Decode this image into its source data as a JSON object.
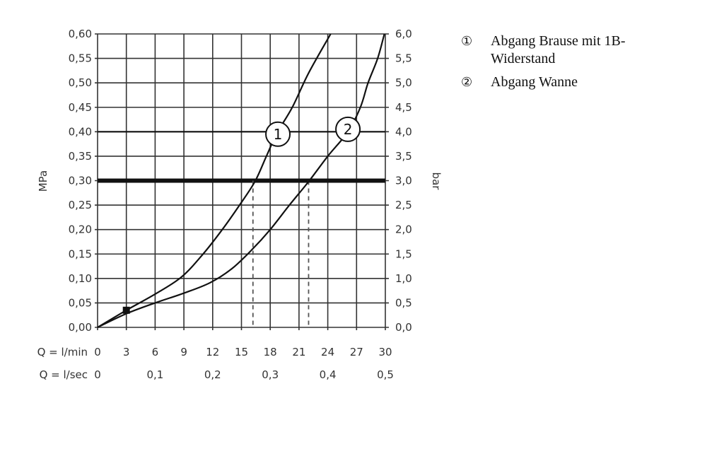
{
  "chart_data": {
    "type": "line",
    "title": "",
    "ylabel_left": "MPa",
    "ylabel_right": "bar",
    "x_row_labels": [
      "Q = l/min",
      "Q = l/sec"
    ],
    "xlim": [
      0,
      30
    ],
    "ylim": [
      0,
      0.6
    ],
    "grid": true,
    "x_ticks_lmin": [
      "0",
      "3",
      "6",
      "9",
      "12",
      "15",
      "18",
      "21",
      "24",
      "27",
      "30"
    ],
    "x_ticks_lsec": [
      {
        "value": 0,
        "label": "0"
      },
      {
        "value": 6,
        "label": "0,1"
      },
      {
        "value": 12,
        "label": "0,2"
      },
      {
        "value": 18,
        "label": "0,3"
      },
      {
        "value": 24,
        "label": "0,4"
      },
      {
        "value": 30,
        "label": "0,5"
      }
    ],
    "y_ticks_left": [
      "0,00",
      "0,05",
      "0,10",
      "0,15",
      "0,20",
      "0,25",
      "0,30",
      "0,35",
      "0,40",
      "0,45",
      "0,50",
      "0,55",
      "0,60"
    ],
    "y_ticks_right": [
      "0,0",
      "0,5",
      "1,0",
      "1,5",
      "2,0",
      "2,5",
      "3,0",
      "3,5",
      "4,0",
      "4,5",
      "5,0",
      "5,5",
      "6,0"
    ],
    "reference_lines": [
      {
        "y": 0.3,
        "style": "thick"
      },
      {
        "y": 0.4,
        "style": "medium"
      }
    ],
    "drop_lines": [
      {
        "x": 16.2,
        "y": 0.3
      },
      {
        "x": 22.0,
        "y": 0.3
      }
    ],
    "marker": {
      "x": 3,
      "y": 0.035
    },
    "series": [
      {
        "name": "1",
        "points": [
          [
            0,
            0
          ],
          [
            3,
            0.035
          ],
          [
            6,
            0.068
          ],
          [
            8.75,
            0.103
          ],
          [
            11,
            0.15
          ],
          [
            13,
            0.2
          ],
          [
            14.8,
            0.25
          ],
          [
            16.4,
            0.298
          ],
          [
            17.6,
            0.35
          ],
          [
            18.7,
            0.397
          ],
          [
            20.3,
            0.45
          ],
          [
            22,
            0.52
          ],
          [
            24.3,
            0.6
          ]
        ],
        "label_at": [
          18.8,
          0.395
        ]
      },
      {
        "name": "2",
        "points": [
          [
            0,
            0
          ],
          [
            3,
            0.028
          ],
          [
            6,
            0.05
          ],
          [
            9,
            0.07
          ],
          [
            11.7,
            0.091
          ],
          [
            14,
            0.12
          ],
          [
            16.1,
            0.159
          ],
          [
            18,
            0.2
          ],
          [
            20,
            0.25
          ],
          [
            22,
            0.298
          ],
          [
            24,
            0.35
          ],
          [
            26.1,
            0.4
          ],
          [
            27.4,
            0.45
          ],
          [
            28.2,
            0.5
          ],
          [
            29.2,
            0.55
          ],
          [
            29.9,
            0.6
          ]
        ],
        "label_at": [
          26.1,
          0.405
        ]
      }
    ],
    "legend": [
      {
        "num": "①",
        "text": "Abgang Brause mit 1B-Widerstand"
      },
      {
        "num": "②",
        "text": "Abgang Wanne"
      }
    ],
    "legend_placement": "right"
  }
}
